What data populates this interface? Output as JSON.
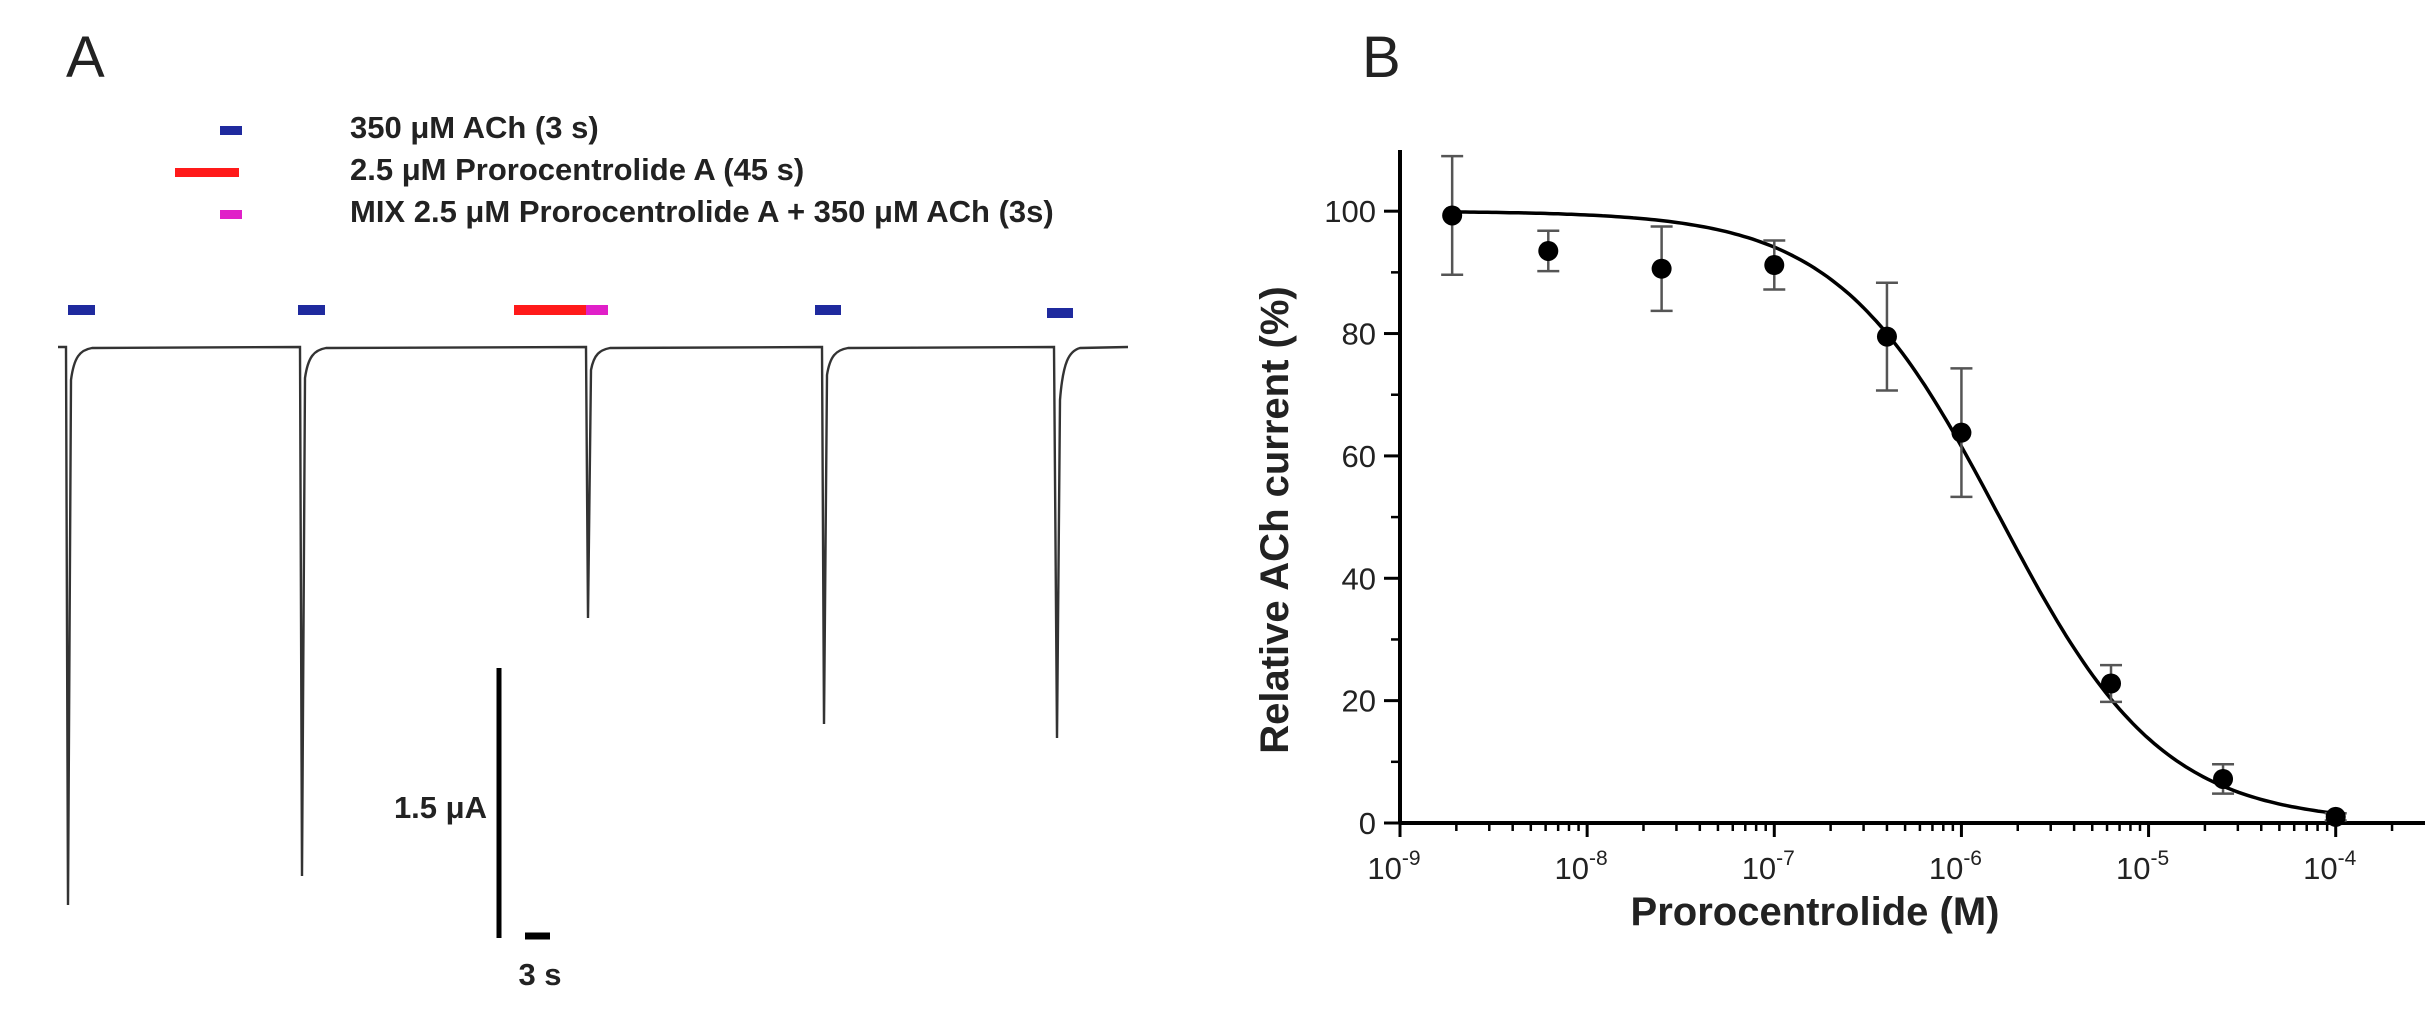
{
  "panels": {
    "a": {
      "letter": "A"
    },
    "b": {
      "letter": "B"
    }
  },
  "legend": [
    {
      "label": "350 μM ACh (3 s)",
      "color": "#1f2a9e"
    },
    {
      "label": "2.5 μM Prorocentrolide A (45 s)",
      "color": "#ff1a1a"
    },
    {
      "label": "MIX 2.5 μM Prorocentrolide A + 350 μM ACh (3s)",
      "color": "#e020c8"
    }
  ],
  "trace_colors": {
    "trace": "#333333",
    "ach": "#1f2a9e",
    "toxin": "#ff1a1a",
    "mix": "#e020c8"
  },
  "scale_bars": {
    "current_label": "1.5 μA",
    "time_label": "3 s"
  },
  "chart_data": {
    "type": "scatter",
    "xlabel": "Prorocentrolide (M)",
    "ylabel": "Relative ACh current (%)",
    "x_scale": "log",
    "xlim": [
      1e-09,
      0.0003
    ],
    "ylim": [
      0,
      110
    ],
    "x_ticks": [
      {
        "value": 1e-09,
        "base": "10",
        "exp": "-9"
      },
      {
        "value": 1e-08,
        "base": "10",
        "exp": "-8"
      },
      {
        "value": 1e-07,
        "base": "10",
        "exp": "-7"
      },
      {
        "value": 1e-06,
        "base": "10",
        "exp": "-6"
      },
      {
        "value": 1e-05,
        "base": "10",
        "exp": "-5"
      },
      {
        "value": 0.0001,
        "base": "10",
        "exp": "-4"
      }
    ],
    "y_ticks": [
      0,
      20,
      40,
      60,
      80,
      100
    ],
    "points": [
      {
        "x": 1.9e-09,
        "y": 99.3,
        "err": 9.7
      },
      {
        "x": 6.2e-09,
        "y": 93.5,
        "err": 3.3
      },
      {
        "x": 2.5e-08,
        "y": 90.6,
        "err": 6.9
      },
      {
        "x": 1e-07,
        "y": 91.2,
        "err": 4.0
      },
      {
        "x": 4e-07,
        "y": 79.5,
        "err": 8.8
      },
      {
        "x": 1e-06,
        "y": 63.8,
        "err": 10.5
      },
      {
        "x": 6.3e-06,
        "y": 22.8,
        "err": 3.0
      },
      {
        "x": 2.5e-05,
        "y": 7.2,
        "err": 2.4
      },
      {
        "x": 0.0001,
        "y": 1.0,
        "err": 0.6
      }
    ],
    "fit": {
      "model": "hill",
      "top": 100,
      "bottom": 0,
      "ic50": 1.6e-06,
      "hill": 1.0
    }
  }
}
